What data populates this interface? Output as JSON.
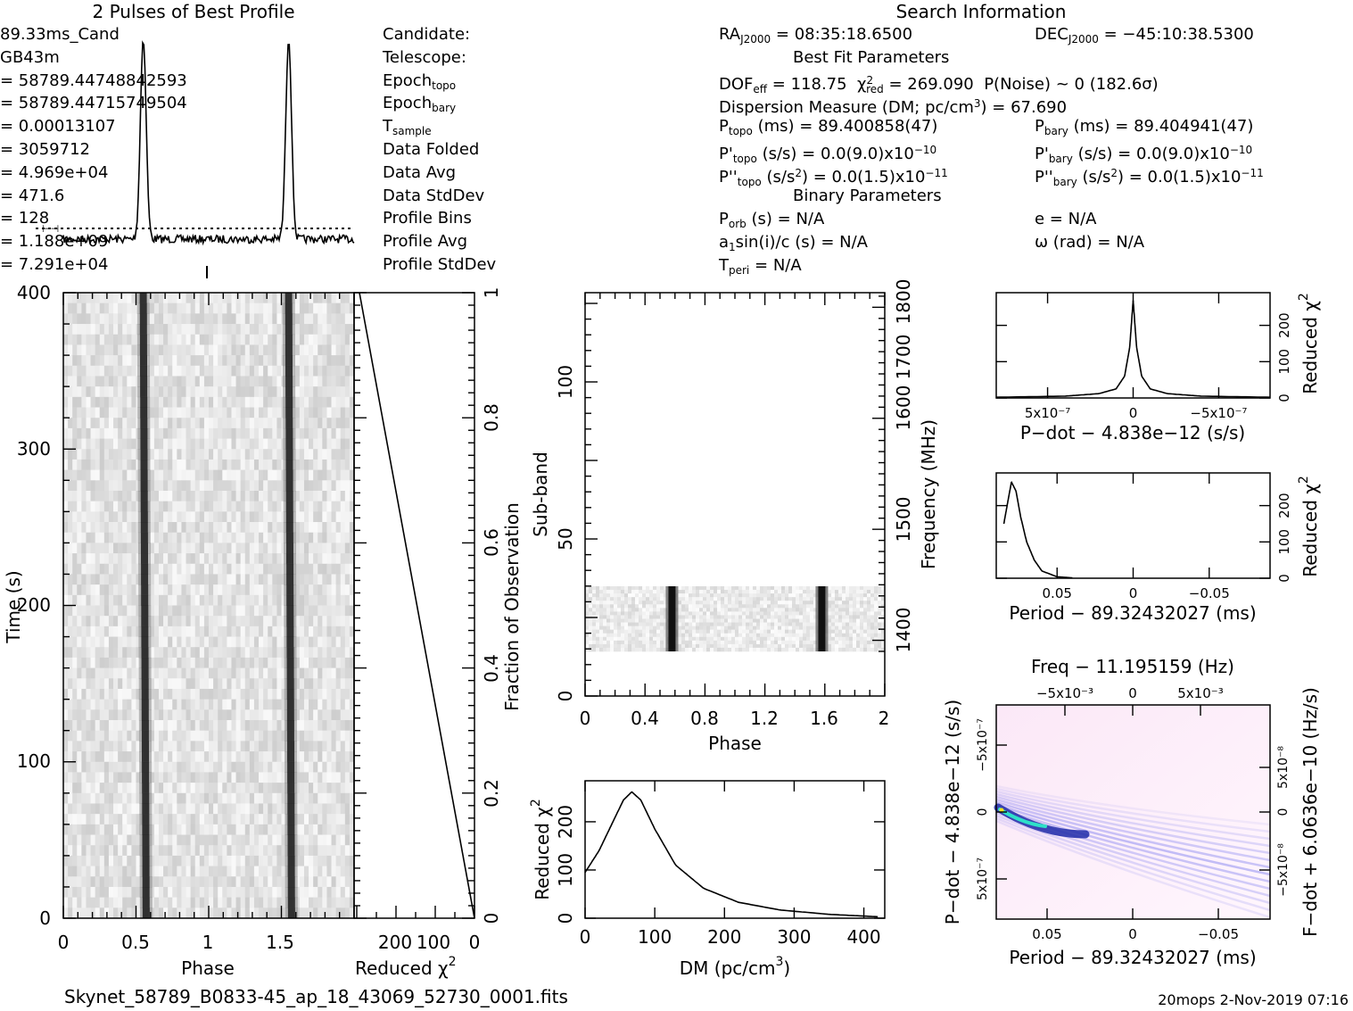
{
  "title_profile": "2 Pulses of Best Profile",
  "title_search": "Search Information",
  "footer_file": "Skynet_58789_B0833-45_ap_18_43069_52730_0001.fits",
  "footer_stamp": "20mops   2-Nov-2019 07:16",
  "info_left": [
    {
      "label": "Candidate:",
      "value": "89.33ms_Cand"
    },
    {
      "label": "Telescope:",
      "value": "GB43m"
    },
    {
      "label": "Epoch",
      "sub": "topo",
      "value": "= 58789.44748842593"
    },
    {
      "label": "Epoch",
      "sub": "bary",
      "value": "= 58789.44715749504"
    },
    {
      "label": "T",
      "sub": "sample",
      "value": "=   0.00013107"
    },
    {
      "label": "Data Folded",
      "value": "=   3059712"
    },
    {
      "label": "Data Avg",
      "value": "=   4.969e+04"
    },
    {
      "label": "Data StdDev",
      "value": "=   471.6"
    },
    {
      "label": "Profile Bins",
      "value": "=   128"
    },
    {
      "label": "Profile Avg",
      "value": "=   1.188e+09"
    },
    {
      "label": "Profile StdDev",
      "value": "=   7.291e+04"
    }
  ],
  "info_ra": {
    "label": "RA",
    "sub": "J2000",
    "value": "= 08:35:18.6500"
  },
  "info_dec": {
    "label": "DEC",
    "sub": "J2000",
    "value": "= −45:10:38.5300"
  },
  "best_fit_header": "Best Fit Parameters",
  "binary_header": "Binary Parameters",
  "fit_dof": "DOF",
  "fit_dof_sub": "eff",
  "fit_dof_value": "= 118.75",
  "fit_chi": "χ",
  "fit_chi_sub": "red",
  "fit_chi_value": "= 269.090",
  "fit_pnoise": "P(Noise) ~ 0    (182.6σ)",
  "fit_dm": "Dispersion Measure (DM; pc/cm",
  "fit_dm_value": ") = 67.690",
  "p_topo": {
    "label": "P",
    "sub": "topo",
    "value": "(ms)  =  89.400858(47)"
  },
  "p_bary": {
    "label": "P",
    "sub": "bary",
    "value": "(ms)  =  89.404941(47)"
  },
  "pd_topo": {
    "label": "P'",
    "sub": "topo",
    "value": "(s/s) = 0.0(9.0)x10",
    "exp": "−10"
  },
  "pd_bary": {
    "label": "P'",
    "sub": "bary",
    "value": "(s/s) = 0.0(9.0)x10",
    "exp": "−10"
  },
  "pdd_topo": {
    "label": "P''",
    "sub": "topo",
    "value": "(s/s",
    "exp": "−11"
  },
  "pdd_bary": {
    "label": "P''",
    "sub": "bary",
    "value": "(s/s",
    "exp": "−11"
  },
  "pdd_mid": ") = 0.0(1.5)x10",
  "binary": [
    {
      "label": "P",
      "sub": "orb",
      "value": "(s) = N/A"
    },
    {
      "label": "a",
      "sub": "1",
      "value": "sin(i)/c (s) = N/A"
    },
    {
      "label": "T",
      "sub": "peri",
      "value": "= N/A"
    }
  ],
  "binary_right": [
    "e = N/A",
    "ω (rad) = N/A"
  ],
  "time_phase": {
    "xlabel": "Phase",
    "ylabel": "Time (s)",
    "xticks": [
      "0",
      "0.5",
      "1",
      "1.5"
    ],
    "yticks": [
      "0",
      "100",
      "200",
      "300",
      "400"
    ]
  },
  "redchi_time": {
    "xlabel": "Reduced χ",
    "xticks": [
      "200",
      "100",
      "0"
    ],
    "ylabel_right": "Fraction of Observation",
    "yticks_right": [
      "0",
      "0.2",
      "0.4",
      "0.6",
      "0.8",
      "1"
    ]
  },
  "subband": {
    "xlabel": "Phase",
    "ylabel": "Sub-band",
    "ylabel_right": "Frequency (MHz)",
    "xticks": [
      "0",
      "0.4",
      "0.8",
      "1.2",
      "1.6",
      "2"
    ],
    "yticks": [
      "0",
      "50",
      "100"
    ],
    "yticks_right": [
      "1400",
      "1500",
      "1600",
      "1700",
      "1800"
    ]
  },
  "chart_data": [
    {
      "type": "line",
      "title": "2 Pulses of Best Profile",
      "x_range": [
        0,
        2
      ],
      "peaks": [
        0.55,
        1.55
      ],
      "baseline_noise": true
    },
    {
      "type": "line",
      "name": "dm_curve",
      "xlabel": "DM (pc/cm³)",
      "ylabel": "Reduced χ²",
      "x": [
        0,
        20,
        40,
        55,
        67,
        80,
        100,
        130,
        170,
        220,
        280,
        350,
        420
      ],
      "values": [
        95,
        140,
        200,
        245,
        262,
        245,
        185,
        110,
        62,
        33,
        17,
        8,
        3
      ],
      "xlim": [
        0,
        430
      ],
      "ylim": [
        0,
        285
      ],
      "xticks": [
        "0",
        "100",
        "200",
        "300",
        "400"
      ],
      "yticks": [
        "0",
        "100",
        "200"
      ]
    },
    {
      "type": "line",
      "name": "pdot_curve",
      "xlabel": "P−dot − 4.838e−12 (s/s)",
      "ylabel": "Reduced χ²",
      "xticks": [
        "5x10⁻⁷",
        "0",
        "−5x10⁻⁷"
      ],
      "yticks": [
        "0",
        "100",
        "200"
      ],
      "x": [
        -8,
        -4,
        -2,
        -1,
        -0.5,
        -0.2,
        0,
        0.2,
        0.5,
        1,
        2,
        4,
        8
      ],
      "values": [
        2,
        5,
        12,
        25,
        60,
        140,
        269,
        140,
        60,
        25,
        12,
        5,
        2
      ],
      "xlim": [
        -8,
        8
      ],
      "ylim": [
        0,
        290
      ]
    },
    {
      "type": "line",
      "name": "period_curve",
      "xlabel": "Period − 89.32432027 (ms)",
      "ylabel": "Reduced χ²",
      "xticks": [
        "0.05",
        "0",
        "−0.05"
      ],
      "yticks": [
        "0",
        "100",
        "200"
      ],
      "x": [
        0.085,
        0.082,
        0.08,
        0.077,
        0.074,
        0.07,
        0.065,
        0.06,
        0.05,
        0.04
      ],
      "values": [
        150,
        220,
        265,
        240,
        170,
        100,
        50,
        20,
        4,
        1
      ],
      "xlim": [
        0.09,
        -0.09
      ],
      "ylim": [
        0,
        290
      ]
    },
    {
      "type": "heatmap",
      "name": "pdot_period_plane",
      "title": "Freq − 11.195159 (Hz)",
      "xlabel": "Period − 89.32432027 (ms)",
      "ylabel": "P−dot − 4.838e−12 (s/s)",
      "ylabel_right": "F−dot + 6.0636e−10 (Hz/s)",
      "xticks": [
        "0.05",
        "0",
        "−0.05"
      ],
      "top_ticks": [
        "−5x10⁻³",
        "0",
        "5x10⁻³"
      ],
      "yticks": [
        "−5x10⁻⁷",
        "0",
        "5x10⁻⁷"
      ],
      "yticks_right": [
        "5x10⁻⁸",
        "0",
        "−5x10⁻⁸"
      ]
    }
  ],
  "dm_axis": {
    "xlabel": "DM (pc/cm",
    "xlabel_tail": ")"
  },
  "reduced": "Reduced χ",
  "reduced_sup": "2"
}
